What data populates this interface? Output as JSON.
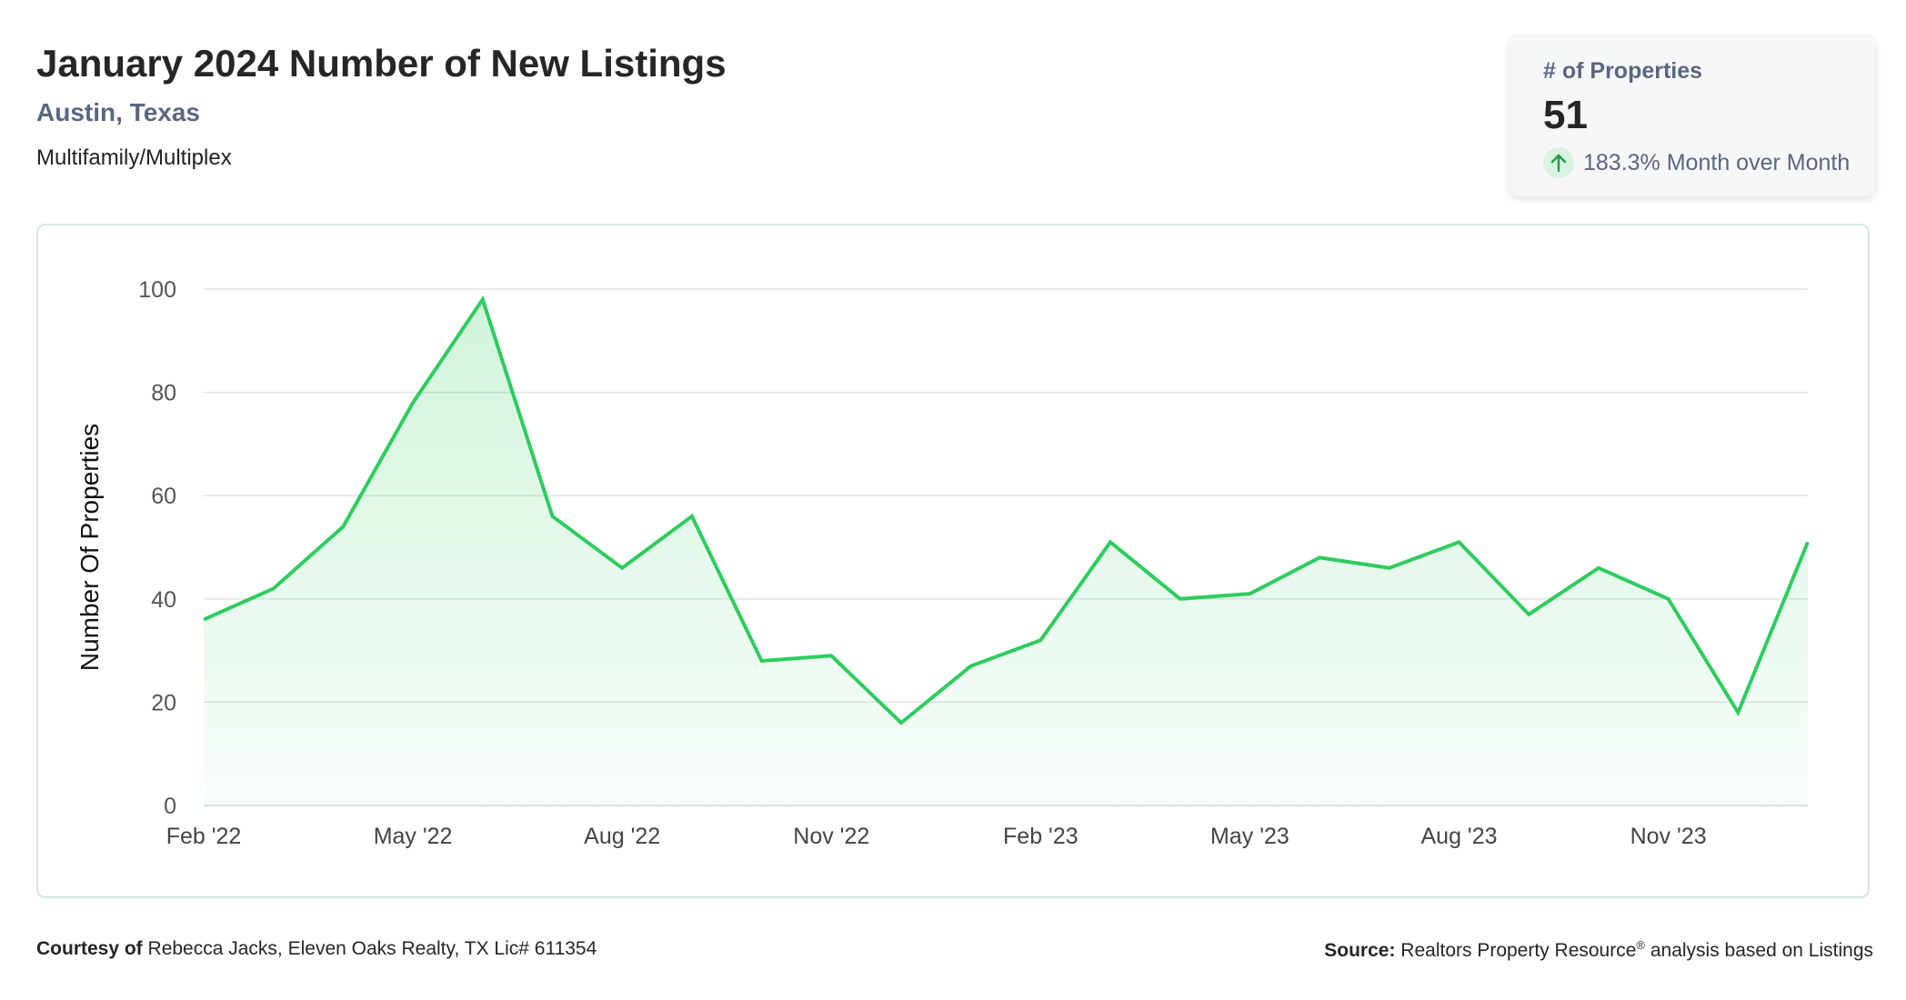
{
  "header": {
    "title": "January 2024 Number of New Listings",
    "location": "Austin, Texas",
    "category": "Multifamily/Multiplex"
  },
  "stat_card": {
    "label": "# of Properties",
    "value": "51",
    "change": "183.3% Month over Month",
    "icon": "arrow-up-icon",
    "accent_color": "#1f9d46"
  },
  "footer": {
    "courtesy_label": "Courtesy of",
    "courtesy_text": "Rebecca Jacks, Eleven Oaks Realty, TX Lic# 611354",
    "source_label": "Source:",
    "source_text": "Realtors Property Resource",
    "source_mark": "®",
    "source_suffix": "analysis based on Listings"
  },
  "chart_data": {
    "type": "area",
    "ylabel": "Number Of Properties",
    "xlabel": "",
    "ylim": [
      0,
      100
    ],
    "yticks": [
      0,
      20,
      40,
      60,
      80,
      100
    ],
    "x_tick_labels": [
      "Feb '22",
      "May '22",
      "Aug '22",
      "Nov '22",
      "Feb '23",
      "May '23",
      "Aug '23",
      "Nov '23"
    ],
    "line_color": "#2ecc5f",
    "fill_color": "#2ecc5f",
    "grid": true,
    "categories": [
      "Feb 2022",
      "Mar 2022",
      "Apr 2022",
      "May 2022",
      "Jun 2022",
      "Jul 2022",
      "Aug 2022",
      "Sep 2022",
      "Oct 2022",
      "Nov 2022",
      "Dec 2022",
      "Jan 2023",
      "Feb 2023",
      "Mar 2023",
      "Apr 2023",
      "May 2023",
      "Jun 2023",
      "Jul 2023",
      "Aug 2023",
      "Sep 2023",
      "Oct 2023",
      "Nov 2023",
      "Dec 2023",
      "Jan 2024"
    ],
    "series": [
      {
        "values": [
          36,
          42,
          54,
          78,
          98,
          56,
          46,
          56,
          28,
          29,
          16,
          27,
          32,
          51,
          40,
          41,
          48,
          46,
          51,
          37,
          46,
          40,
          18,
          51
        ]
      }
    ]
  }
}
